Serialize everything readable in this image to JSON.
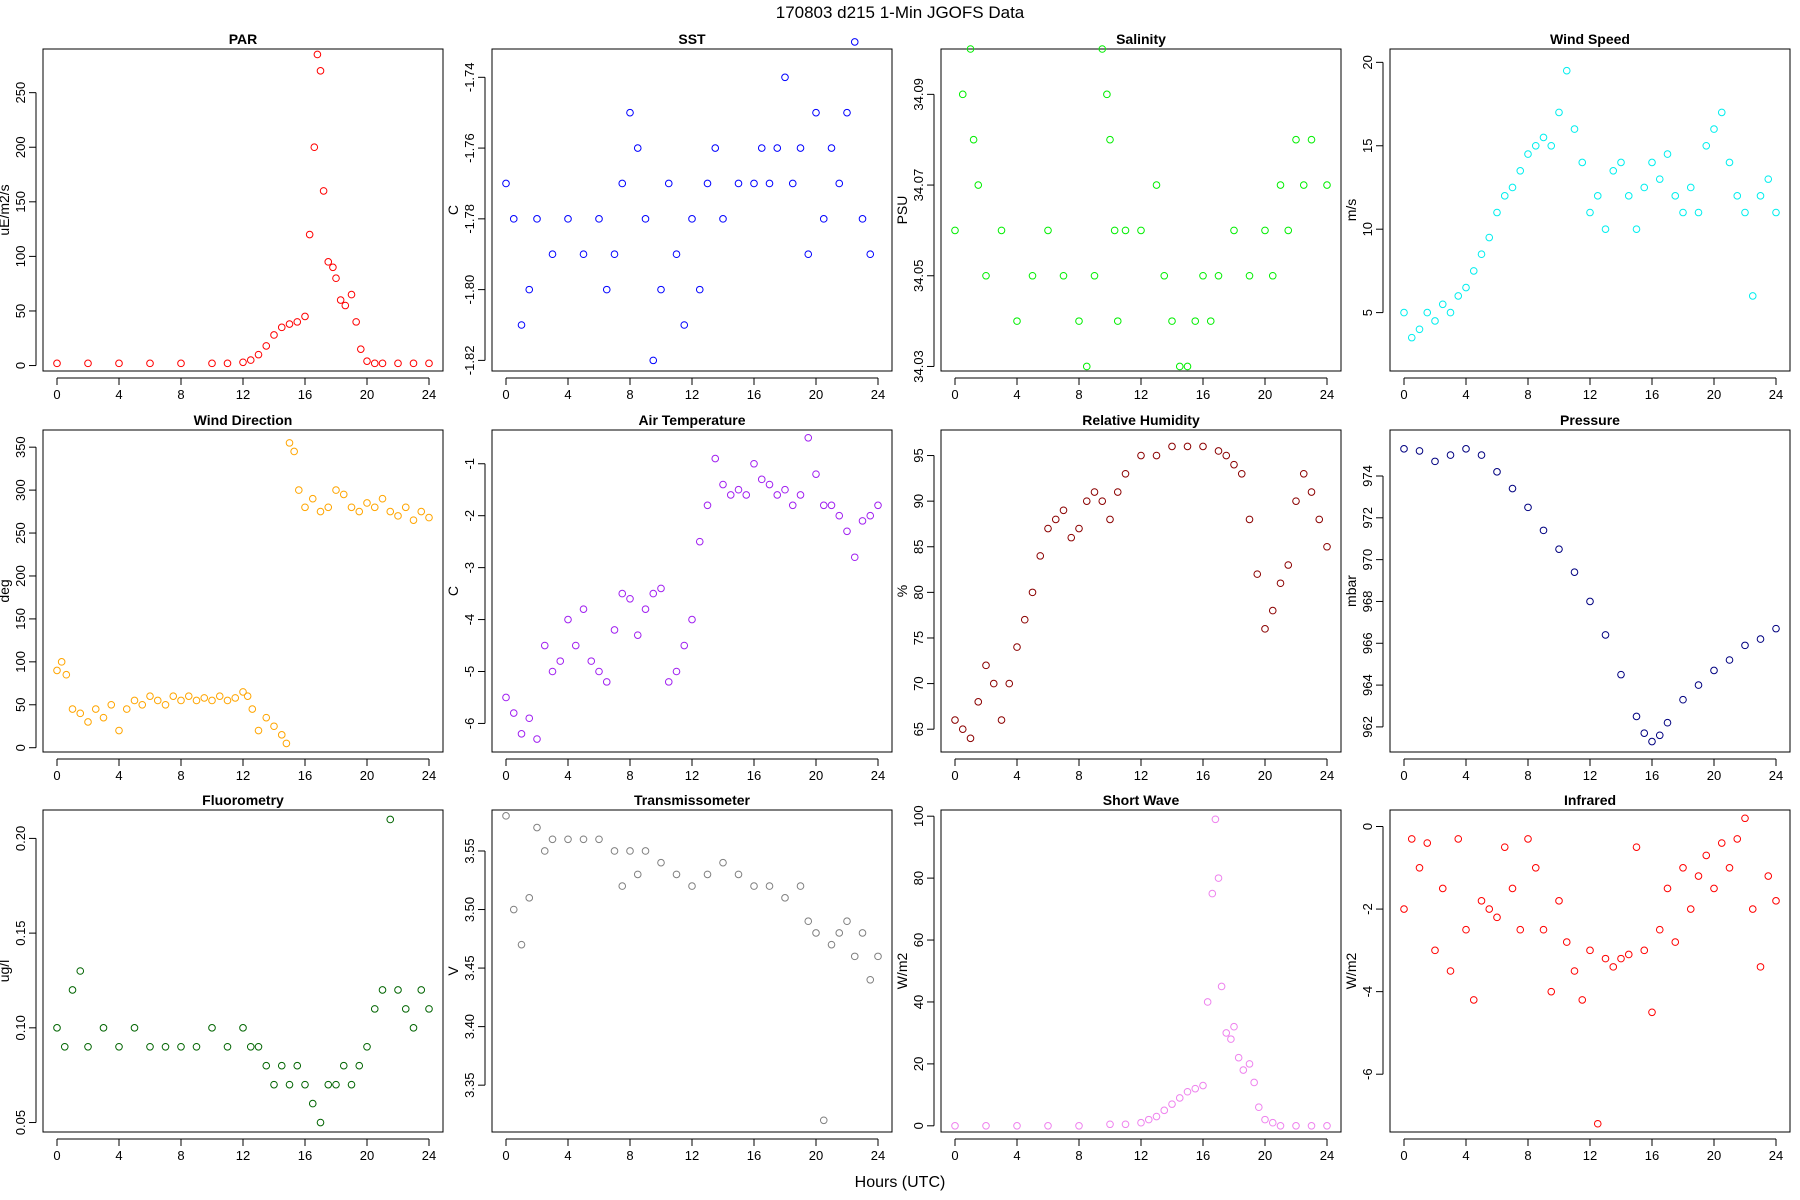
{
  "title": "170803   d215   1-Min  JGOFS Data",
  "xlabel": "Hours (UTC)",
  "chart_data": [
    {
      "type": "scatter",
      "title": "PAR",
      "ylabel": "uE/m2/s",
      "color": "#ff0000",
      "xlim": [
        0,
        24
      ],
      "xticks": [
        0,
        4,
        8,
        12,
        16,
        20,
        24
      ],
      "ylim": [
        -5,
        290
      ],
      "yticks": [
        0,
        50,
        100,
        150,
        200,
        250
      ],
      "ytick_labels": [
        "0",
        "50",
        "100",
        "150",
        "200",
        "250"
      ],
      "x": [
        0,
        2,
        4,
        6,
        8,
        10,
        11,
        12,
        12.5,
        13,
        13.5,
        14,
        14.5,
        15,
        15.5,
        16,
        16.3,
        16.6,
        16.8,
        17,
        17.2,
        17.5,
        17.8,
        18,
        18.3,
        18.6,
        19,
        19.3,
        19.6,
        20,
        20.5,
        21,
        22,
        23,
        24
      ],
      "y": [
        2,
        2,
        2,
        2,
        2,
        2,
        2,
        3,
        5,
        10,
        18,
        28,
        35,
        38,
        40,
        45,
        120,
        200,
        285,
        270,
        160,
        95,
        90,
        80,
        60,
        55,
        65,
        40,
        15,
        4,
        2,
        2,
        2,
        2,
        2
      ]
    },
    {
      "type": "scatter",
      "title": "SST",
      "ylabel": "C",
      "color": "#0000ff",
      "xlim": [
        0,
        24
      ],
      "xticks": [
        0,
        4,
        8,
        12,
        16,
        20,
        24
      ],
      "ylim": [
        -1.823,
        -1.732
      ],
      "yticks": [
        -1.82,
        -1.8,
        -1.78,
        -1.76,
        -1.74
      ],
      "ytick_labels": [
        "-1.82",
        "-1.80",
        "-1.78",
        "-1.76",
        "-1.74"
      ],
      "x": [
        0,
        0.5,
        1,
        1.5,
        2,
        3,
        4,
        5,
        6,
        6.5,
        7,
        7.5,
        8,
        8.5,
        9,
        9.5,
        10,
        10.5,
        11,
        11.5,
        12,
        12.5,
        13,
        13.5,
        14,
        15,
        16,
        16.5,
        17,
        17.5,
        18,
        18.5,
        19,
        19.5,
        20,
        20.5,
        21,
        21.5,
        22,
        22.5,
        23,
        23.5
      ],
      "y": [
        -1.77,
        -1.78,
        -1.81,
        -1.8,
        -1.78,
        -1.79,
        -1.78,
        -1.79,
        -1.78,
        -1.8,
        -1.79,
        -1.77,
        -1.75,
        -1.76,
        -1.78,
        -1.82,
        -1.8,
        -1.77,
        -1.79,
        -1.81,
        -1.78,
        -1.8,
        -1.77,
        -1.76,
        -1.78,
        -1.77,
        -1.77,
        -1.76,
        -1.77,
        -1.76,
        -1.74,
        -1.77,
        -1.76,
        -1.79,
        -1.75,
        -1.78,
        -1.76,
        -1.77,
        -1.75,
        -1.73,
        -1.78,
        -1.79
      ]
    },
    {
      "type": "scatter",
      "title": "Salinity",
      "ylabel": "PSU",
      "color": "#00ee00",
      "xlim": [
        0,
        24
      ],
      "xticks": [
        0,
        4,
        8,
        12,
        16,
        20,
        24
      ],
      "ylim": [
        34.029,
        34.1
      ],
      "yticks": [
        34.03,
        34.05,
        34.07,
        34.09
      ],
      "ytick_labels": [
        "34.03",
        "34.05",
        "34.07",
        "34.09"
      ],
      "x": [
        0,
        0.5,
        1,
        1.2,
        1.5,
        2,
        3,
        4,
        5,
        6,
        7,
        8,
        8.5,
        9,
        9.5,
        9.8,
        10,
        10.3,
        10.5,
        11,
        12,
        13,
        13.5,
        14,
        14.5,
        15,
        15.5,
        16,
        16.5,
        17,
        18,
        19,
        20,
        20.5,
        21,
        21.5,
        22,
        22.5,
        23,
        24
      ],
      "y": [
        34.06,
        34.09,
        34.1,
        34.08,
        34.07,
        34.05,
        34.06,
        34.04,
        34.05,
        34.06,
        34.05,
        34.04,
        34.03,
        34.05,
        34.1,
        34.09,
        34.08,
        34.06,
        34.04,
        34.06,
        34.06,
        34.07,
        34.05,
        34.04,
        34.03,
        34.03,
        34.04,
        34.05,
        34.04,
        34.05,
        34.06,
        34.05,
        34.06,
        34.05,
        34.07,
        34.06,
        34.08,
        34.07,
        34.08,
        34.07
      ]
    },
    {
      "type": "scatter",
      "title": "Wind Speed",
      "ylabel": "m/s",
      "color": "#00eeee",
      "xlim": [
        0,
        24
      ],
      "xticks": [
        0,
        4,
        8,
        12,
        16,
        20,
        24
      ],
      "ylim": [
        1.5,
        20.8
      ],
      "yticks": [
        5,
        10,
        15,
        20
      ],
      "ytick_labels": [
        "5",
        "10",
        "15",
        "20"
      ],
      "x": [
        0,
        0.5,
        1,
        1.5,
        2,
        2.5,
        3,
        3.5,
        4,
        4.5,
        5,
        5.5,
        6,
        6.5,
        7,
        7.5,
        8,
        8.5,
        9,
        9.5,
        10,
        10.5,
        11,
        11.5,
        12,
        12.5,
        13,
        13.5,
        14,
        14.5,
        15,
        15.5,
        16,
        16.5,
        17,
        17.5,
        18,
        18.5,
        19,
        19.5,
        20,
        20.5,
        21,
        21.5,
        22,
        22.5,
        23,
        23.5,
        24
      ],
      "y": [
        5,
        3.5,
        4,
        5,
        4.5,
        5.5,
        5,
        6,
        6.5,
        7.5,
        8.5,
        9.5,
        11,
        12,
        12.5,
        13.5,
        14.5,
        15,
        15.5,
        15,
        17,
        19.5,
        16,
        14,
        11,
        12,
        10,
        13.5,
        14,
        12,
        10,
        12.5,
        14,
        13,
        14.5,
        12,
        11,
        12.5,
        11,
        15,
        16,
        17,
        14,
        12,
        11,
        6,
        12,
        13,
        11
      ]
    },
    {
      "type": "scatter",
      "title": "Wind Direction",
      "ylabel": "deg",
      "color": "#ffa500",
      "xlim": [
        0,
        24
      ],
      "xticks": [
        0,
        4,
        8,
        12,
        16,
        20,
        24
      ],
      "ylim": [
        -5,
        370
      ],
      "yticks": [
        0,
        50,
        100,
        150,
        200,
        250,
        300,
        350
      ],
      "ytick_labels": [
        "0",
        "50",
        "100",
        "150",
        "200",
        "250",
        "300",
        "350"
      ],
      "x": [
        0,
        0.3,
        0.6,
        1,
        1.5,
        2,
        2.5,
        3,
        3.5,
        4,
        4.5,
        5,
        5.5,
        6,
        6.5,
        7,
        7.5,
        8,
        8.5,
        9,
        9.5,
        10,
        10.5,
        11,
        11.5,
        12,
        12.3,
        12.6,
        13,
        13.5,
        14,
        14.5,
        14.8,
        15,
        15.3,
        15.6,
        16,
        16.5,
        17,
        17.5,
        18,
        18.5,
        19,
        19.5,
        20,
        20.5,
        21,
        21.5,
        22,
        22.5,
        23,
        23.5,
        24
      ],
      "y": [
        90,
        100,
        85,
        45,
        40,
        30,
        45,
        35,
        50,
        20,
        45,
        55,
        50,
        60,
        55,
        50,
        60,
        55,
        60,
        55,
        58,
        55,
        60,
        55,
        58,
        65,
        60,
        45,
        20,
        35,
        25,
        15,
        5,
        355,
        345,
        300,
        280,
        290,
        275,
        280,
        300,
        295,
        280,
        275,
        285,
        280,
        290,
        275,
        270,
        280,
        265,
        275,
        268
      ]
    },
    {
      "type": "scatter",
      "title": "Air Temperature",
      "ylabel": "C",
      "color": "#a020f0",
      "xlim": [
        0,
        24
      ],
      "xticks": [
        0,
        4,
        8,
        12,
        16,
        20,
        24
      ],
      "ylim": [
        -6.55,
        -0.35
      ],
      "yticks": [
        -6,
        -5,
        -4,
        -3,
        -2,
        -1
      ],
      "ytick_labels": [
        "-6",
        "-5",
        "-4",
        "-3",
        "-2",
        "-1"
      ],
      "x": [
        0,
        0.5,
        1,
        1.5,
        2,
        2.5,
        3,
        3.5,
        4,
        4.5,
        5,
        5.5,
        6,
        6.5,
        7,
        7.5,
        8,
        8.5,
        9,
        9.5,
        10,
        10.5,
        11,
        11.5,
        12,
        12.5,
        13,
        13.5,
        14,
        14.5,
        15,
        15.5,
        16,
        16.5,
        17,
        17.5,
        18,
        18.5,
        19,
        19.5,
        20,
        20.5,
        21,
        21.5,
        22,
        22.5,
        23,
        23.5,
        24
      ],
      "y": [
        -5.5,
        -5.8,
        -6.2,
        -5.9,
        -6.3,
        -4.5,
        -5,
        -4.8,
        -4,
        -4.5,
        -3.8,
        -4.8,
        -5,
        -5.2,
        -4.2,
        -3.5,
        -3.6,
        -4.3,
        -3.8,
        -3.5,
        -3.4,
        -5.2,
        -5,
        -4.5,
        -4,
        -2.5,
        -1.8,
        -0.9,
        -1.4,
        -1.6,
        -1.5,
        -1.6,
        -1,
        -1.3,
        -1.4,
        -1.6,
        -1.5,
        -1.8,
        -1.6,
        -0.5,
        -1.2,
        -1.8,
        -1.8,
        -2,
        -2.3,
        -2.8,
        -2.1,
        -2,
        -1.8
      ]
    },
    {
      "type": "scatter",
      "title": "Relative Humidity",
      "ylabel": "%",
      "color": "#8b0000",
      "xlim": [
        0,
        24
      ],
      "xticks": [
        0,
        4,
        8,
        12,
        16,
        20,
        24
      ],
      "ylim": [
        62.5,
        97.8
      ],
      "yticks": [
        65,
        70,
        75,
        80,
        85,
        90,
        95
      ],
      "ytick_labels": [
        "65",
        "70",
        "75",
        "80",
        "85",
        "90",
        "95"
      ],
      "x": [
        0,
        0.5,
        1,
        1.5,
        2,
        2.5,
        3,
        3.5,
        4,
        4.5,
        5,
        5.5,
        6,
        6.5,
        7,
        7.5,
        8,
        8.5,
        9,
        9.5,
        10,
        10.5,
        11,
        12,
        13,
        14,
        15,
        16,
        17,
        17.5,
        18,
        18.5,
        19,
        19.5,
        20,
        20.5,
        21,
        21.5,
        22,
        22.5,
        23,
        23.5,
        24
      ],
      "y": [
        66,
        65,
        64,
        68,
        72,
        70,
        66,
        70,
        74,
        77,
        80,
        84,
        87,
        88,
        89,
        86,
        87,
        90,
        91,
        90,
        88,
        91,
        93,
        95,
        95,
        96,
        96,
        96,
        95.5,
        95,
        94,
        93,
        88,
        82,
        76,
        78,
        81,
        83,
        90,
        93,
        91,
        88,
        85
      ]
    },
    {
      "type": "scatter",
      "title": "Pressure",
      "ylabel": "mbar",
      "color": "#000080",
      "xlim": [
        0,
        24
      ],
      "xticks": [
        0,
        4,
        8,
        12,
        16,
        20,
        24
      ],
      "ylim": [
        960.8,
        976.2
      ],
      "yticks": [
        962,
        964,
        966,
        968,
        970,
        972,
        974
      ],
      "ytick_labels": [
        "962",
        "964",
        "966",
        "968",
        "970",
        "972",
        "974"
      ],
      "x": [
        0,
        1,
        2,
        3,
        4,
        5,
        6,
        7,
        8,
        9,
        10,
        11,
        12,
        13,
        14,
        15,
        15.5,
        16,
        16.5,
        17,
        18,
        19,
        20,
        21,
        22,
        23,
        24
      ],
      "y": [
        975.3,
        975.2,
        974.7,
        975,
        975.3,
        975,
        974.2,
        973.4,
        972.5,
        971.4,
        970.5,
        969.4,
        968,
        966.4,
        964.5,
        962.5,
        961.7,
        961.3,
        961.6,
        962.2,
        963.3,
        964,
        964.7,
        965.2,
        965.9,
        966.2,
        966.7
      ]
    },
    {
      "type": "scatter",
      "title": "Fluorometry",
      "ylabel": "ug/l",
      "color": "#006400",
      "xlim": [
        0,
        24
      ],
      "xticks": [
        0,
        4,
        8,
        12,
        16,
        20,
        24
      ],
      "ylim": [
        0.045,
        0.215
      ],
      "yticks": [
        0.05,
        0.1,
        0.15,
        0.2
      ],
      "ytick_labels": [
        "0.05",
        "0.10",
        "0.15",
        "0.20"
      ],
      "x": [
        0,
        0.5,
        1,
        1.5,
        2,
        3,
        4,
        5,
        6,
        7,
        8,
        9,
        10,
        11,
        12,
        12.5,
        13,
        13.5,
        14,
        14.5,
        15,
        15.5,
        16,
        16.5,
        17,
        17.5,
        18,
        18.5,
        19,
        19.5,
        20,
        20.5,
        21,
        21.5,
        22,
        22.5,
        23,
        23.5,
        24
      ],
      "y": [
        0.1,
        0.09,
        0.12,
        0.13,
        0.09,
        0.1,
        0.09,
        0.1,
        0.09,
        0.09,
        0.09,
        0.09,
        0.1,
        0.09,
        0.1,
        0.09,
        0.09,
        0.08,
        0.07,
        0.08,
        0.07,
        0.08,
        0.07,
        0.06,
        0.05,
        0.07,
        0.07,
        0.08,
        0.07,
        0.08,
        0.09,
        0.11,
        0.12,
        0.21,
        0.12,
        0.11,
        0.1,
        0.12,
        0.11
      ]
    },
    {
      "type": "scatter",
      "title": "Transmissometer",
      "ylabel": "V",
      "color": "#808080",
      "xlim": [
        0,
        24
      ],
      "xticks": [
        0,
        4,
        8,
        12,
        16,
        20,
        24
      ],
      "ylim": [
        3.31,
        3.585
      ],
      "yticks": [
        3.35,
        3.4,
        3.45,
        3.5,
        3.55
      ],
      "ytick_labels": [
        "3.35",
        "3.40",
        "3.45",
        "3.50",
        "3.55"
      ],
      "x": [
        0,
        0.5,
        1,
        1.5,
        2,
        2.5,
        3,
        4,
        5,
        6,
        7,
        7.5,
        8,
        8.5,
        9,
        10,
        11,
        12,
        13,
        14,
        15,
        16,
        17,
        18,
        19,
        19.5,
        20,
        20.5,
        21,
        21.5,
        22,
        22.5,
        23,
        23.5,
        24
      ],
      "y": [
        3.58,
        3.5,
        3.47,
        3.51,
        3.57,
        3.55,
        3.56,
        3.56,
        3.56,
        3.56,
        3.55,
        3.52,
        3.55,
        3.53,
        3.55,
        3.54,
        3.53,
        3.52,
        3.53,
        3.54,
        3.53,
        3.52,
        3.52,
        3.51,
        3.52,
        3.49,
        3.48,
        3.32,
        3.47,
        3.48,
        3.49,
        3.46,
        3.48,
        3.44,
        3.46
      ]
    },
    {
      "type": "scatter",
      "title": "Short Wave",
      "ylabel": "W/m2",
      "color": "#ee82ee",
      "xlim": [
        0,
        24
      ],
      "xticks": [
        0,
        4,
        8,
        12,
        16,
        20,
        24
      ],
      "ylim": [
        -2,
        102
      ],
      "yticks": [
        0,
        20,
        40,
        60,
        80,
        100
      ],
      "ytick_labels": [
        "0",
        "20",
        "40",
        "60",
        "80",
        "100"
      ],
      "x": [
        0,
        2,
        4,
        6,
        8,
        10,
        11,
        12,
        12.5,
        13,
        13.5,
        14,
        14.5,
        15,
        15.5,
        16,
        16.3,
        16.6,
        16.8,
        17,
        17.2,
        17.5,
        17.8,
        18,
        18.3,
        18.6,
        19,
        19.3,
        19.6,
        20,
        20.5,
        21,
        22,
        23,
        24
      ],
      "y": [
        0,
        0,
        0,
        0,
        0,
        0.5,
        0.5,
        1,
        2,
        3,
        5,
        7,
        9,
        11,
        12,
        13,
        40,
        75,
        99,
        80,
        45,
        30,
        28,
        32,
        22,
        18,
        20,
        14,
        6,
        2,
        1,
        0,
        0,
        0,
        0
      ]
    },
    {
      "type": "scatter",
      "title": "Infrared",
      "ylabel": "W/m2",
      "color": "#ff0000",
      "xlim": [
        0,
        24
      ],
      "xticks": [
        0,
        4,
        8,
        12,
        16,
        20,
        24
      ],
      "ylim": [
        -7.4,
        0.4
      ],
      "yticks": [
        -6,
        -4,
        -2,
        0
      ],
      "ytick_labels": [
        "-6",
        "-4",
        "-2",
        "0"
      ],
      "x": [
        0,
        0.5,
        1,
        1.5,
        2,
        2.5,
        3,
        3.5,
        4,
        4.5,
        5,
        5.5,
        6,
        6.5,
        7,
        7.5,
        8,
        8.5,
        9,
        9.5,
        10,
        10.5,
        11,
        11.5,
        12,
        12.5,
        13,
        13.5,
        14,
        14.5,
        15,
        15.5,
        16,
        16.5,
        17,
        17.5,
        18,
        18.5,
        19,
        19.5,
        20,
        20.5,
        21,
        21.5,
        22,
        22.5,
        23,
        23.5,
        24
      ],
      "y": [
        -2,
        -0.3,
        -1,
        -0.4,
        -3,
        -1.5,
        -3.5,
        -0.3,
        -2.5,
        -4.2,
        -1.8,
        -2,
        -2.2,
        -0.5,
        -1.5,
        -2.5,
        -0.3,
        -1,
        -2.5,
        -4,
        -1.8,
        -2.8,
        -3.5,
        -4.2,
        -3,
        -7.2,
        -3.2,
        -3.4,
        -3.2,
        -3.1,
        -0.5,
        -3,
        -4.5,
        -2.5,
        -1.5,
        -2.8,
        -1,
        -2,
        -1.2,
        -0.7,
        -1.5,
        -0.4,
        -1,
        -0.3,
        0.2,
        -2,
        -3.4,
        -1.2,
        -1.8
      ]
    }
  ]
}
